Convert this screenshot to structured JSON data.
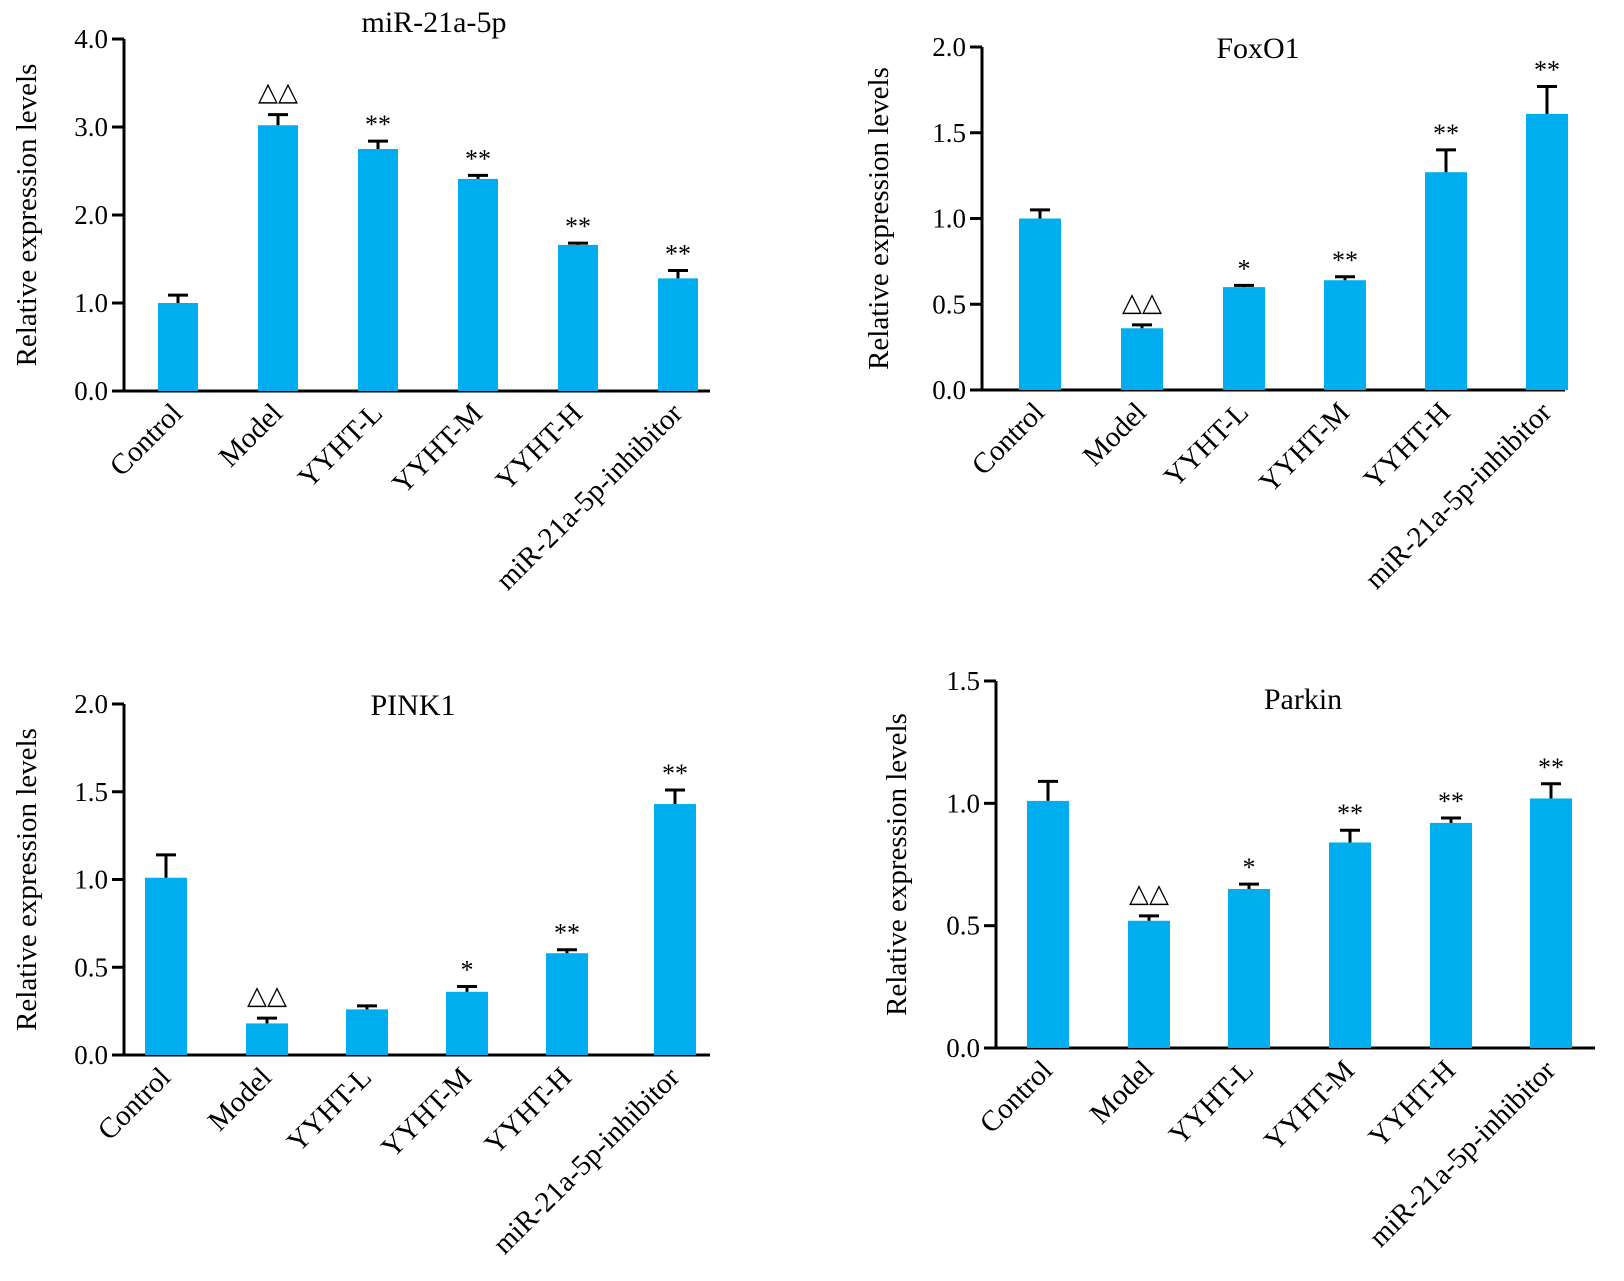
{
  "colors": {
    "bar": "#00aeef",
    "axis": "#000000",
    "text": "#000000"
  },
  "chart_data": [
    {
      "type": "bar",
      "title": "miR-21a-5p",
      "xlabel": "",
      "ylabel": "Relative expression levels",
      "ylim": [
        0,
        4.0
      ],
      "yticks": [
        "0.0",
        "1.0",
        "2.0",
        "3.0",
        "4.0"
      ],
      "categories": [
        "Control",
        "Model",
        "YYHT-L",
        "YYHT-M",
        "YYHT-H",
        "miR-21a-5p-inhibitor"
      ],
      "values": [
        1.0,
        3.02,
        2.75,
        2.41,
        1.66,
        1.28
      ],
      "errors": [
        0.09,
        0.12,
        0.09,
        0.04,
        0.02,
        0.09
      ],
      "significance": [
        "",
        "△△",
        "**",
        "**",
        "**",
        "**"
      ]
    },
    {
      "type": "bar",
      "title": "FoxO1",
      "xlabel": "",
      "ylabel": "Relative expression levels",
      "ylim": [
        0,
        2.0
      ],
      "yticks": [
        "0.0",
        "0.5",
        "1.0",
        "1.5",
        "2.0"
      ],
      "categories": [
        "Control",
        "Model",
        "YYHT-L",
        "YYHT-M",
        "YYHT-H",
        "miR-21a-5p-inhibitor"
      ],
      "values": [
        1.0,
        0.36,
        0.6,
        0.64,
        1.27,
        1.61
      ],
      "errors": [
        0.05,
        0.02,
        0.01,
        0.02,
        0.13,
        0.16
      ],
      "significance": [
        "",
        "△△",
        "*",
        "**",
        "**",
        "**"
      ]
    },
    {
      "type": "bar",
      "title": "PINK1",
      "xlabel": "",
      "ylabel": "Relative expression levels",
      "ylim": [
        0,
        2.0
      ],
      "yticks": [
        "0.0",
        "0.5",
        "1.0",
        "1.5",
        "2.0"
      ],
      "categories": [
        "Control",
        "Model",
        "YYHT-L",
        "YYHT-M",
        "YYHT-H",
        "miR-21a-5p-inhibitor"
      ],
      "values": [
        1.01,
        0.18,
        0.26,
        0.36,
        0.58,
        1.43
      ],
      "errors": [
        0.13,
        0.03,
        0.02,
        0.03,
        0.02,
        0.08
      ],
      "significance": [
        "",
        "△△",
        "",
        "*",
        "**",
        "**"
      ]
    },
    {
      "type": "bar",
      "title": "Parkin",
      "xlabel": "",
      "ylabel": "Relative expression levels",
      "ylim": [
        0,
        1.5
      ],
      "yticks": [
        "0.0",
        "0.5",
        "1.0",
        "1.5"
      ],
      "categories": [
        "Control",
        "Model",
        "YYHT-L",
        "YYHT-M",
        "YYHT-H",
        "miR-21a-5p-inhibitor"
      ],
      "values": [
        1.01,
        0.52,
        0.65,
        0.84,
        0.92,
        1.02
      ],
      "errors": [
        0.08,
        0.02,
        0.02,
        0.05,
        0.02,
        0.06
      ],
      "significance": [
        "",
        "△△",
        "*",
        "**",
        "**",
        "**"
      ]
    }
  ]
}
